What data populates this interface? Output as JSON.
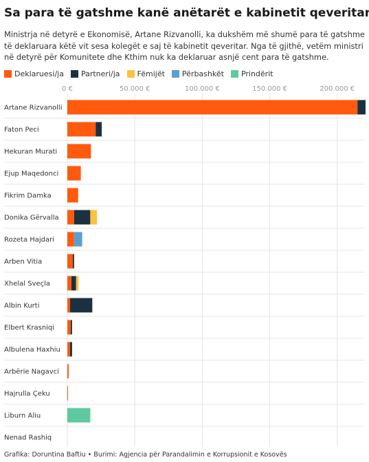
{
  "title": "Sa para të gatshme kanë anëtarët e kabinetit qeveritar?",
  "subtitle": "Ministrja në detyrë e Ekonomisë, Artane Rizvanolli, ka dukshëm më shumë para të gatshme të deklaruara këtë vit sesa kolegët e saj të kabinetit qeveritar. Nga të gjithë, vetëm ministri në detyrë për Komunitete dhe Kthim nuk ka deklaruar asnjë cent para të gatshme.",
  "footer": "Grafika: Doruntina Baftiu • Burimi: Agjencia për Parandalimin e Korrupsionit e Kosovës",
  "colors": {
    "Deklaruesi/ja": "#ff5a0d",
    "Partneri/ja": "#1c3140",
    "Fëmijët": "#f8c242",
    "Përbashkët": "#5a9fd1",
    "Prindërit": "#5ec9a1"
  },
  "chart_data": {
    "type": "bar",
    "orientation": "horizontal",
    "stacked": true,
    "xlim": [
      0,
      220000
    ],
    "ticks": [
      {
        "value": 0,
        "label": "0 €"
      },
      {
        "value": 50000,
        "label": "50.000 €"
      },
      {
        "value": 100000,
        "label": "100.000 €"
      },
      {
        "value": 150000,
        "label": "150.000 €"
      },
      {
        "value": 200000,
        "label": "200.000 €"
      }
    ],
    "categories": [
      "Artane Rizvanolli",
      "Faton Peci",
      "Hekuran Murati",
      "Ejup Maqedonci",
      "Fikrim Damka",
      "Donika Gërvalla",
      "Rozeta Hajdari",
      "Arben Vitia",
      "Xhelal Sveçla",
      "Albin Kurti",
      "Elbert Krasniqi",
      "Albulena Haxhiu",
      "Arbërie Nagavci",
      "Hajrulla Çeku",
      "Liburn Aliu",
      "Nenad Rashiq"
    ],
    "series": [
      {
        "name": "Deklaruesi/ja",
        "values": [
          215000,
          21000,
          17500,
          10000,
          8000,
          5000,
          5000,
          4000,
          3000,
          2000,
          2500,
          2000,
          1000,
          500,
          0,
          0
        ]
      },
      {
        "name": "Partneri/ja",
        "values": [
          6000,
          4500,
          0,
          0,
          0,
          12000,
          0,
          1000,
          3500,
          16500,
          1000,
          1500,
          0,
          0,
          0,
          0
        ]
      },
      {
        "name": "Fëmijët",
        "values": [
          0,
          0,
          0,
          0,
          0,
          5000,
          0,
          0,
          1800,
          0,
          0,
          0,
          0,
          0,
          0,
          0
        ]
      },
      {
        "name": "Përbashkët",
        "values": [
          0,
          0,
          0,
          0,
          0,
          0,
          6000,
          0,
          0,
          0,
          0,
          0,
          0,
          0,
          0,
          0
        ]
      },
      {
        "name": "Prindërit",
        "values": [
          0,
          0,
          0,
          0,
          0,
          0,
          0,
          0,
          0,
          0,
          0,
          0,
          0,
          0,
          17000,
          0
        ]
      }
    ]
  }
}
